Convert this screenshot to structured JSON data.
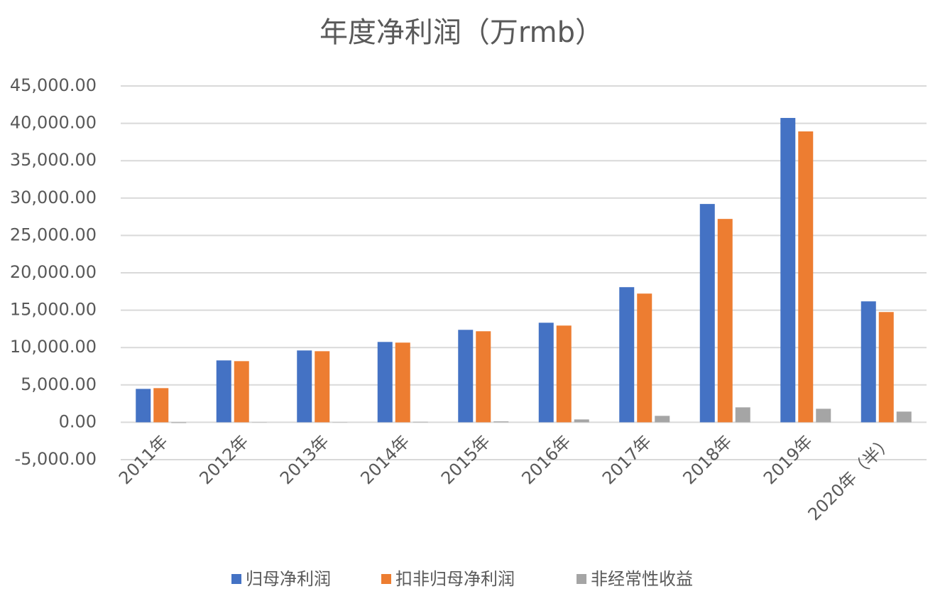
{
  "chart_data": {
    "type": "bar",
    "title": "年度净利润（万rmb）",
    "categories": [
      "2011年",
      "2012年",
      "2013年",
      "2014年",
      "2015年",
      "2016年",
      "2017年",
      "2018年",
      "2019年",
      "2020年（半）"
    ],
    "series": [
      {
        "name": "归母净利润",
        "color": "#4472c4",
        "values": [
          4470,
          8280,
          9610,
          10750,
          12370,
          13320,
          18080,
          29210,
          40720,
          16180
        ]
      },
      {
        "name": "扣非归母净利润",
        "color": "#ed7d31",
        "values": [
          4570,
          8180,
          9510,
          10660,
          12180,
          12940,
          17220,
          27210,
          38920,
          14750
        ]
      },
      {
        "name": "非经常性收益",
        "color": "#a5a5a5",
        "values": [
          -100,
          30,
          30,
          60,
          120,
          380,
          860,
          2000,
          1810,
          1430
        ]
      }
    ],
    "ylim": [
      -5000,
      45000
    ],
    "yticks": [
      {
        "value": -5000,
        "label": "-5,000.00"
      },
      {
        "value": 0,
        "label": "0.00"
      },
      {
        "value": 5000,
        "label": "5,000.00"
      },
      {
        "value": 10000,
        "label": "10,000.00"
      },
      {
        "value": 15000,
        "label": "15,000.00"
      },
      {
        "value": 20000,
        "label": "20,000.00"
      },
      {
        "value": 25000,
        "label": "25,000.00"
      },
      {
        "value": 30000,
        "label": "30,000.00"
      },
      {
        "value": 35000,
        "label": "35,000.00"
      },
      {
        "value": 40000,
        "label": "40,000.00"
      },
      {
        "value": 45000,
        "label": "45,000.00"
      }
    ],
    "grid": true,
    "legend": "bottom"
  }
}
